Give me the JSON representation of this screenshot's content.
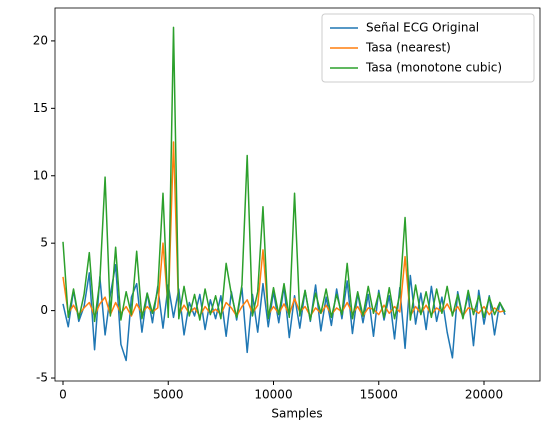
{
  "chart_data": {
    "type": "line",
    "xlabel": "Samples",
    "x": [
      0,
      250,
      500,
      750,
      1000,
      1250,
      1500,
      1750,
      2000,
      2250,
      2500,
      2750,
      3000,
      3250,
      3500,
      3750,
      4000,
      4250,
      4500,
      4750,
      5000,
      5250,
      5500,
      5750,
      6000,
      6250,
      6500,
      6750,
      7000,
      7250,
      7500,
      7750,
      8000,
      8250,
      8500,
      8750,
      9000,
      9250,
      9500,
      9750,
      10000,
      10250,
      10500,
      10750,
      11000,
      11250,
      11500,
      11750,
      12000,
      12250,
      12500,
      12750,
      13000,
      13250,
      13500,
      13750,
      14000,
      14250,
      14500,
      14750,
      15000,
      15250,
      15500,
      15750,
      16000,
      16250,
      16500,
      16750,
      17000,
      17250,
      17500,
      17750,
      18000,
      18250,
      18500,
      18750,
      19000,
      19250,
      19500,
      19750,
      20000,
      20250,
      20500,
      20750,
      21000
    ],
    "series": [
      {
        "name": "Señal ECG Original",
        "color": "#1f77b4",
        "values": [
          0.5,
          -1.2,
          1.5,
          -0.8,
          0.3,
          2.8,
          -2.9,
          2.5,
          -1.8,
          1.2,
          3.4,
          -2.5,
          -3.7,
          1.0,
          2.0,
          -1.6,
          1.3,
          -0.9,
          1.8,
          -1.3,
          1.9,
          -0.5,
          1.6,
          -1.8,
          0.6,
          -0.4,
          1.2,
          -1.4,
          0.8,
          -0.6,
          1.1,
          -1.9,
          1.4,
          -0.7,
          1.7,
          -3.1,
          1.2,
          -1.6,
          2.0,
          -1.2,
          1.4,
          -0.9,
          1.8,
          -2.0,
          1.1,
          -1.3,
          1.5,
          -0.8,
          1.9,
          -1.5,
          1.0,
          -1.1,
          1.6,
          -0.6,
          2.2,
          -1.7,
          1.3,
          -0.9,
          1.2,
          -1.9,
          1.5,
          -0.7,
          1.1,
          -2.1,
          1.7,
          -2.8,
          2.6,
          -1.0,
          1.3,
          -1.4,
          1.8,
          -0.8,
          1.0,
          -1.6,
          -3.5,
          1.4,
          -0.5,
          1.2,
          -2.6,
          1.5,
          -1.0,
          1.1,
          -1.8,
          0.6,
          -0.3
        ]
      },
      {
        "name": "Tasa (nearest)",
        "color": "#ff7f0e",
        "values": [
          2.5,
          -0.2,
          0.4,
          -0.3,
          0.2,
          0.6,
          -0.4,
          0.5,
          1.0,
          -0.3,
          0.6,
          -0.2,
          0.3,
          -0.4,
          0.5,
          -0.2,
          0.3,
          -0.1,
          0.2,
          5.0,
          0.1,
          12.5,
          -0.3,
          0.4,
          -0.2,
          0.2,
          -0.4,
          0.3,
          -0.2,
          0.1,
          -0.3,
          0.6,
          0.2,
          -0.4,
          0.3,
          0.8,
          -0.2,
          0.4,
          4.5,
          -0.3,
          0.3,
          -0.2,
          0.5,
          -0.3,
          0.9,
          -0.1,
          0.3,
          -0.4,
          0.2,
          -0.2,
          0.4,
          -0.3,
          0.2,
          -0.1,
          0.6,
          -0.2,
          0.3,
          -0.4,
          0.2,
          0.1,
          -0.3,
          0.4,
          -0.2,
          0.3,
          -0.1,
          4.0,
          -0.4,
          0.3,
          -0.2,
          0.4,
          -0.3,
          0.2,
          -0.1,
          0.5,
          -0.2,
          0.3,
          -0.4,
          0.2,
          0.1,
          -0.2,
          0.3,
          -0.3,
          0.2,
          -0.1,
          0.0
        ]
      },
      {
        "name": "Tasa (monotone cubic)",
        "color": "#2ca02c",
        "values": [
          5.1,
          -0.5,
          1.6,
          -0.6,
          1.2,
          4.3,
          -0.8,
          2.2,
          9.9,
          -0.4,
          4.7,
          -0.7,
          1.4,
          -0.3,
          4.4,
          -0.6,
          1.3,
          -0.2,
          1.5,
          8.7,
          -0.5,
          21.0,
          -0.6,
          1.8,
          -0.4,
          1.2,
          -0.7,
          1.6,
          -0.3,
          1.1,
          -0.6,
          3.5,
          1.2,
          -0.5,
          1.9,
          11.5,
          -0.4,
          1.4,
          7.7,
          -0.6,
          1.7,
          -0.3,
          2.0,
          -0.5,
          8.7,
          -0.4,
          1.5,
          -0.7,
          1.3,
          -0.2,
          1.6,
          -0.5,
          1.2,
          -0.3,
          3.5,
          -0.6,
          1.4,
          -0.4,
          1.8,
          -0.2,
          1.3,
          -0.5,
          1.7,
          -0.6,
          1.2,
          6.9,
          -0.7,
          1.9,
          -0.3,
          1.4,
          -0.5,
          1.6,
          -0.2,
          1.8,
          -0.4,
          1.2,
          -0.6,
          1.5,
          -0.3,
          1.1,
          -0.5,
          1.0,
          -0.3,
          0.6,
          -0.1
        ]
      }
    ],
    "xlim": [
      -380,
      22660
    ],
    "ylim": [
      -5.22,
      22.44
    ],
    "xticks": [
      0,
      5000,
      10000,
      15000,
      20000
    ],
    "yticks": [
      -5,
      0,
      5,
      10,
      15,
      20
    ],
    "legend": "upper right"
  }
}
